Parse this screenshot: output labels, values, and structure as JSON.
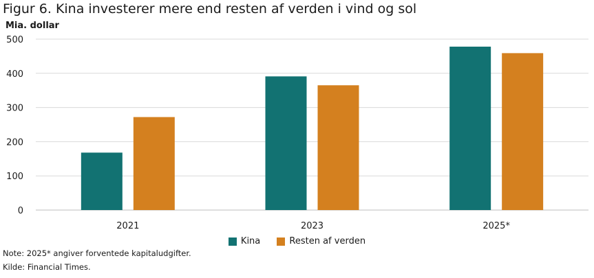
{
  "title": "Figur 6. Kina investerer mere end resten af verden i vind og sol",
  "colors": {
    "kina": "#127272",
    "resten": "#d4801f",
    "grid": "#d9d9d9"
  },
  "chart_data": {
    "type": "bar",
    "title": "Figur 6. Kina investerer mere end resten af verden i vind og sol",
    "ylabel": "Mia. dollar",
    "categories": [
      "2021",
      "2023",
      "2025*"
    ],
    "series": [
      {
        "name": "Kina",
        "values": [
          168,
          391,
          478
        ]
      },
      {
        "name": "Resten af verden",
        "values": [
          272,
          365,
          459
        ]
      }
    ],
    "ylim": [
      0,
      500
    ],
    "yticks": [
      "0",
      "100",
      "200",
      "300",
      "400",
      "500"
    ],
    "grid": true,
    "legend": "bottom-center"
  },
  "notes": {
    "note": "Note: 2025* angiver forventede kapitaludgifter.",
    "source": "Kilde: Financial Times."
  }
}
